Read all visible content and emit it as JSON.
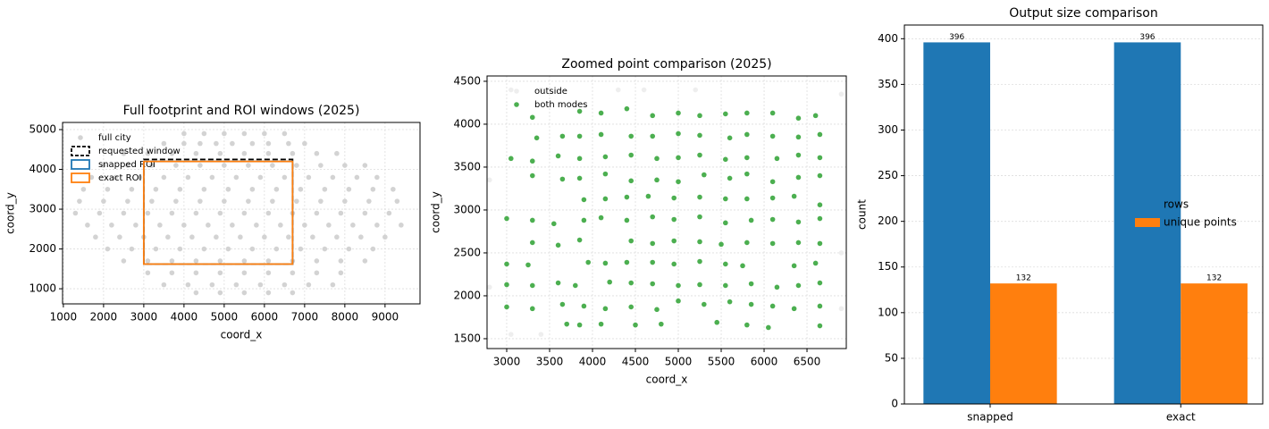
{
  "chart_data": [
    {
      "type": "scatter",
      "title": "Full footprint and ROI windows (2025)",
      "xlabel": "coord_x",
      "ylabel": "coord_y",
      "xlim": [
        980,
        9870
      ],
      "ylim": [
        620,
        5180
      ],
      "xticks": [
        1000,
        2000,
        3000,
        4000,
        5000,
        6000,
        7000,
        8000,
        9000
      ],
      "yticks": [
        1000,
        2000,
        3000,
        4000,
        5000
      ],
      "grid": true,
      "series": [
        {
          "name": "full city",
          "color": "#d3d3d3",
          "x": [
            4000,
            4500,
            5000,
            5500,
            6000,
            6500,
            3500,
            4000,
            4400,
            4800,
            5200,
            5700,
            6100,
            6600,
            7000,
            2500,
            3100,
            3700,
            4300,
            4900,
            5500,
            6100,
            6700,
            7300,
            7800,
            2000,
            2600,
            3200,
            3800,
            4400,
            5000,
            5600,
            6200,
            6800,
            7400,
            8000,
            8500,
            1700,
            2300,
            2900,
            3500,
            4100,
            4700,
            5300,
            5900,
            6500,
            7100,
            7700,
            8300,
            8800,
            1500,
            2100,
            2700,
            3300,
            3900,
            4500,
            5100,
            5700,
            6300,
            6900,
            7500,
            8100,
            8700,
            9200,
            1400,
            2000,
            2600,
            3200,
            3800,
            4400,
            5000,
            5600,
            6200,
            6800,
            7400,
            8000,
            8600,
            9300,
            1300,
            1900,
            2500,
            3100,
            3700,
            4300,
            4900,
            5500,
            6100,
            6700,
            7300,
            7900,
            8500,
            9100,
            1600,
            2200,
            2800,
            3400,
            4000,
            4600,
            5200,
            5800,
            6400,
            7000,
            7600,
            8200,
            8800,
            9400,
            1800,
            2400,
            3000,
            3600,
            4200,
            4800,
            5400,
            6000,
            6600,
            7200,
            7800,
            8400,
            9000,
            2100,
            2700,
            3300,
            3900,
            4500,
            5100,
            5700,
            6300,
            6900,
            7500,
            8100,
            8700,
            2500,
            3100,
            3700,
            4300,
            4900,
            5500,
            6100,
            6700,
            7300,
            7900,
            8500,
            3100,
            3700,
            4300,
            4900,
            5500,
            6100,
            6700,
            7300,
            7900,
            3500,
            4100,
            4700,
            5300,
            5900,
            6500,
            7100,
            7700,
            4300,
            4900,
            5500,
            6100,
            6700
          ],
          "y": [
            4900,
            4900,
            4900,
            4900,
            4900,
            4900,
            4650,
            4650,
            4650,
            4650,
            4650,
            4650,
            4650,
            4650,
            4650,
            4400,
            4400,
            4400,
            4400,
            4400,
            4400,
            4400,
            4400,
            4400,
            4400,
            4100,
            4100,
            4100,
            4100,
            4100,
            4100,
            4100,
            4100,
            4100,
            4100,
            4100,
            4100,
            3800,
            3800,
            3800,
            3800,
            3800,
            3800,
            3800,
            3800,
            3800,
            3800,
            3800,
            3800,
            3800,
            3500,
            3500,
            3500,
            3500,
            3500,
            3500,
            3500,
            3500,
            3500,
            3500,
            3500,
            3500,
            3500,
            3500,
            3200,
            3200,
            3200,
            3200,
            3200,
            3200,
            3200,
            3200,
            3200,
            3200,
            3200,
            3200,
            3200,
            3200,
            2900,
            2900,
            2900,
            2900,
            2900,
            2900,
            2900,
            2900,
            2900,
            2900,
            2900,
            2900,
            2900,
            2900,
            2600,
            2600,
            2600,
            2600,
            2600,
            2600,
            2600,
            2600,
            2600,
            2600,
            2600,
            2600,
            2600,
            2600,
            2300,
            2300,
            2300,
            2300,
            2300,
            2300,
            2300,
            2300,
            2300,
            2300,
            2300,
            2300,
            2300,
            2000,
            2000,
            2000,
            2000,
            2000,
            2000,
            2000,
            2000,
            2000,
            2000,
            2000,
            2000,
            1700,
            1700,
            1700,
            1700,
            1700,
            1700,
            1700,
            1700,
            1700,
            1700,
            1700,
            1400,
            1400,
            1400,
            1400,
            1400,
            1400,
            1400,
            1400,
            1400,
            1100,
            1100,
            1100,
            1100,
            1100,
            1100,
            1100,
            1100,
            900,
            900,
            900,
            900,
            900
          ]
        }
      ],
      "windows": [
        {
          "name": "requested window",
          "color": "#000000",
          "dash": true,
          "x": [
            3000,
            6700
          ],
          "y": [
            1620,
            4250
          ]
        },
        {
          "name": "snapped ROI",
          "color": "#1f77b4",
          "dash": false,
          "x": [
            3000,
            6700
          ],
          "y": [
            1620,
            4200
          ]
        },
        {
          "name": "exact ROI",
          "color": "#ff7f0e",
          "dash": false,
          "x": [
            3000,
            6700
          ],
          "y": [
            1620,
            4200
          ]
        }
      ]
    },
    {
      "type": "scatter",
      "title": "Zoomed point comparison (2025)",
      "xlabel": "coord_x",
      "ylabel": "coord_y",
      "xlim": [
        2771,
        6958
      ],
      "ylim": [
        1385,
        4562
      ],
      "xticks": [
        3000,
        3500,
        4000,
        4500,
        5000,
        5500,
        6000,
        6500
      ],
      "yticks": [
        1500,
        2000,
        2500,
        3000,
        3500,
        4000,
        4500
      ],
      "grid": true,
      "series": [
        {
          "name": "outside",
          "color": "#eeeeee",
          "x": [
            2800,
            3050,
            3400,
            3050,
            3400,
            4300,
            4600,
            5200,
            6900,
            6900,
            6900,
            2800
          ],
          "y": [
            3350,
            4400,
            4400,
            1550,
            1550,
            4400,
            4400,
            4400,
            4350,
            2500,
            1850,
            2100
          ]
        },
        {
          "name": "both modes",
          "color": "#4caf50",
          "x": [
            3300,
            3850,
            4100,
            4400,
            4700,
            5000,
            5250,
            5550,
            5800,
            6100,
            6400,
            6600,
            3350,
            3650,
            3850,
            4100,
            4450,
            4700,
            5000,
            5250,
            5600,
            5800,
            6100,
            6400,
            6650,
            3050,
            3300,
            3600,
            3850,
            4150,
            4450,
            4750,
            5000,
            5250,
            5550,
            5800,
            6150,
            6400,
            6650,
            3300,
            3650,
            3850,
            4150,
            4450,
            4750,
            5000,
            5300,
            5600,
            5800,
            6100,
            6400,
            6650,
            3900,
            4150,
            4400,
            4650,
            4950,
            5250,
            5550,
            5800,
            6100,
            6350,
            6650,
            3000,
            3300,
            3550,
            3900,
            4100,
            4400,
            4700,
            4950,
            5250,
            5550,
            5850,
            6100,
            6400,
            6650,
            3300,
            3600,
            3850,
            4450,
            4700,
            4950,
            5250,
            5500,
            5800,
            6100,
            6400,
            6650,
            3000,
            3250,
            3950,
            4150,
            4400,
            4700,
            4950,
            5250,
            5550,
            5750,
            6350,
            6600,
            3000,
            3300,
            3600,
            3800,
            4200,
            4450,
            4700,
            5000,
            5250,
            5550,
            5850,
            6150,
            6400,
            6650,
            3000,
            3300,
            3650,
            3900,
            4150,
            4450,
            4750,
            5000,
            5300,
            5600,
            5850,
            6100,
            6350,
            6650,
            3700,
            3850,
            4100,
            4500,
            4800,
            5450,
            5800,
            6050,
            6650
          ],
          "y": [
            4080,
            4150,
            4130,
            4180,
            4100,
            4130,
            4100,
            4120,
            4130,
            4130,
            4070,
            4100,
            3840,
            3860,
            3860,
            3880,
            3860,
            3860,
            3890,
            3870,
            3840,
            3880,
            3860,
            3850,
            3880,
            3600,
            3570,
            3630,
            3600,
            3620,
            3640,
            3600,
            3610,
            3640,
            3590,
            3610,
            3600,
            3640,
            3610,
            3400,
            3360,
            3370,
            3420,
            3340,
            3350,
            3330,
            3410,
            3370,
            3420,
            3330,
            3380,
            3400,
            3120,
            3130,
            3150,
            3160,
            3140,
            3150,
            3130,
            3130,
            3140,
            3160,
            3060,
            2900,
            2880,
            2840,
            2880,
            2910,
            2880,
            2920,
            2890,
            2920,
            2850,
            2880,
            2890,
            2860,
            2900,
            2620,
            2590,
            2650,
            2640,
            2610,
            2640,
            2630,
            2600,
            2620,
            2610,
            2620,
            2610,
            2370,
            2360,
            2390,
            2380,
            2390,
            2390,
            2370,
            2400,
            2370,
            2350,
            2350,
            2380,
            2130,
            2120,
            2150,
            2120,
            2160,
            2150,
            2140,
            2120,
            2130,
            2120,
            2140,
            2100,
            2120,
            2150,
            1870,
            1850,
            1900,
            1880,
            1850,
            1870,
            1840,
            1940,
            1900,
            1930,
            1900,
            1880,
            1850,
            1880,
            1670,
            1660,
            1670,
            1660,
            1670,
            1690,
            1660,
            1630,
            1650
          ]
        }
      ]
    },
    {
      "type": "bar",
      "title": "Output size comparison",
      "ylabel": "count",
      "categories": [
        "snapped",
        "exact"
      ],
      "ylim": [
        0,
        415
      ],
      "yticks": [
        0,
        50,
        100,
        150,
        200,
        250,
        300,
        350,
        400
      ],
      "grid": true,
      "series": [
        {
          "name": "rows",
          "color": "#1f77b4",
          "values": [
            396,
            396
          ]
        },
        {
          "name": "unique points",
          "color": "#ff7f0e",
          "values": [
            132,
            132
          ]
        }
      ]
    }
  ]
}
